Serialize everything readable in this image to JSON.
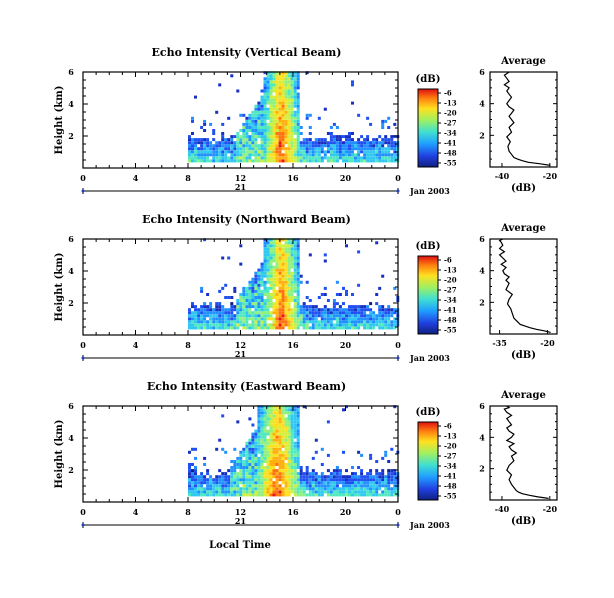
{
  "figure": {
    "xlabel": "Local Time",
    "date_label": "Jan 2003",
    "day_label": "21",
    "colorbar_title": "(dB)",
    "avg_title": "Average",
    "avg_xlabel": "(dB)"
  },
  "chart_data": [
    {
      "type": "heatmap",
      "title": "Echo Intensity (Vertical Beam)",
      "ylabel": "Height (km)",
      "x_ticks": [
        "0",
        "4",
        "8",
        "12",
        "16",
        "20",
        "0"
      ],
      "xlim": [
        0,
        24
      ],
      "y_ticks": [
        "6",
        "4",
        "2"
      ],
      "ylim": [
        0,
        6
      ],
      "colorbar_ticks": [
        "-6",
        "-13",
        "-20",
        "-27",
        "-34",
        "-41",
        "-48",
        "-55"
      ],
      "colorbar_range": [
        -55,
        -6
      ],
      "core": {
        "start_hour": 13.7,
        "end_hour": 16.3,
        "max_height_km": 6
      },
      "echo_start_hour": 8,
      "echo_end_hour": 24
    },
    {
      "type": "heatmap",
      "title": "Echo Intensity (Northward Beam)",
      "ylabel": "Height (km)",
      "x_ticks": [
        "0",
        "4",
        "8",
        "12",
        "16",
        "20",
        "0"
      ],
      "xlim": [
        0,
        24
      ],
      "y_ticks": [
        "6",
        "4",
        "2"
      ],
      "ylim": [
        0,
        6
      ],
      "colorbar_ticks": [
        "-6",
        "-13",
        "-20",
        "-27",
        "-34",
        "-41",
        "-48",
        "-55"
      ],
      "colorbar_range": [
        -55,
        -6
      ],
      "core": {
        "start_hour": 13.7,
        "end_hour": 16.3,
        "max_height_km": 6
      },
      "echo_start_hour": 8,
      "echo_end_hour": 24
    },
    {
      "type": "heatmap",
      "title": "Echo Intensity (Eastward Beam)",
      "ylabel": "Height (km)",
      "x_ticks": [
        "0",
        "4",
        "8",
        "12",
        "16",
        "20",
        "0"
      ],
      "xlim": [
        0,
        24
      ],
      "y_ticks": [
        "6",
        "4",
        "2"
      ],
      "ylim": [
        0,
        6
      ],
      "colorbar_ticks": [
        "-6",
        "-13",
        "-20",
        "-27",
        "-34",
        "-41",
        "-48",
        "-55"
      ],
      "colorbar_range": [
        -55,
        -6
      ],
      "core": {
        "start_hour": 13.2,
        "end_hour": 16.3,
        "max_height_km": 6
      },
      "echo_start_hour": 8,
      "echo_end_hour": 24
    },
    {
      "type": "line",
      "title": "Average",
      "xlabel": "(dB)",
      "x_ticks": [
        "-40",
        "-20"
      ],
      "xlim": [
        -45,
        -17
      ],
      "y_ticks": [
        "6",
        "4",
        "2"
      ],
      "ylim": [
        0,
        6
      ],
      "x": [
        -19.8,
        -24,
        -29,
        -31.5,
        -33.5,
        -35,
        -36,
        -37,
        -37.5,
        -36.5,
        -38,
        -36,
        -37,
        -35,
        -36,
        -37,
        -36,
        -35,
        -37,
        -38,
        -37,
        -36,
        -37,
        -38,
        -37,
        -39,
        -37,
        -38,
        -39,
        -38,
        -37
      ],
      "y": [
        0.1,
        0.2,
        0.3,
        0.4,
        0.5,
        0.6,
        0.8,
        1.0,
        1.3,
        1.6,
        1.9,
        2.2,
        2.5,
        2.8,
        3.0,
        3.2,
        3.4,
        3.6,
        3.8,
        4.0,
        4.2,
        4.4,
        4.6,
        4.8,
        5.0,
        5.2,
        5.4,
        5.6,
        5.8,
        5.9,
        6.0
      ]
    },
    {
      "type": "line",
      "title": "Average",
      "xlabel": "(dB)",
      "x_ticks": [
        "-35",
        "-20"
      ],
      "xlim": [
        -38,
        -17
      ],
      "y_ticks": [
        "6",
        "4",
        "2"
      ],
      "ylim": [
        0,
        6
      ],
      "x": [
        -19,
        -21,
        -23.5,
        -25.5,
        -27,
        -28.5,
        -29.5,
        -30.5,
        -31,
        -31.5,
        -32.5,
        -32,
        -31,
        -33,
        -32.5,
        -32,
        -33,
        -32,
        -33.5,
        -34,
        -33,
        -34.5,
        -33,
        -34,
        -35,
        -33.5,
        -35,
        -34,
        -34.5,
        -35,
        -34
      ],
      "y": [
        0.1,
        0.2,
        0.3,
        0.4,
        0.5,
        0.6,
        0.8,
        1.0,
        1.3,
        1.6,
        1.9,
        2.2,
        2.5,
        2.8,
        3.0,
        3.2,
        3.4,
        3.6,
        3.8,
        4.0,
        4.2,
        4.4,
        4.6,
        4.8,
        5.0,
        5.2,
        5.4,
        5.6,
        5.8,
        5.9,
        6.0
      ]
    },
    {
      "type": "line",
      "title": "Average",
      "xlabel": "(dB)",
      "x_ticks": [
        "-40",
        "-20"
      ],
      "xlim": [
        -45,
        -17
      ],
      "y_ticks": [
        "6",
        "4",
        "2"
      ],
      "ylim": [
        0,
        6
      ],
      "x": [
        -20.5,
        -25,
        -28.5,
        -31.5,
        -33,
        -34,
        -35,
        -36,
        -37,
        -36,
        -38,
        -37,
        -35,
        -36,
        -34,
        -36,
        -37,
        -35,
        -38,
        -36,
        -35,
        -37,
        -38,
        -36,
        -37,
        -38,
        -36,
        -38,
        -39,
        -37,
        -38
      ],
      "y": [
        0.1,
        0.2,
        0.3,
        0.4,
        0.5,
        0.6,
        0.8,
        1.0,
        1.3,
        1.6,
        1.9,
        2.2,
        2.5,
        2.8,
        3.0,
        3.2,
        3.4,
        3.6,
        3.8,
        4.0,
        4.2,
        4.4,
        4.6,
        4.8,
        5.0,
        5.2,
        5.4,
        5.6,
        5.8,
        5.9,
        6.0
      ]
    }
  ]
}
